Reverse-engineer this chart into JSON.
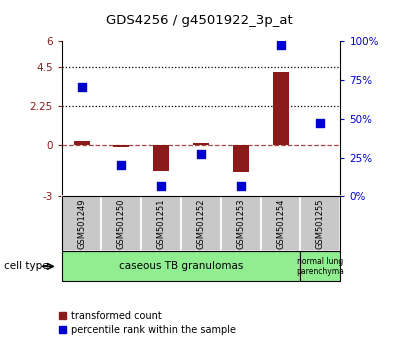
{
  "title": "GDS4256 / g4501922_3p_at",
  "samples": [
    "GSM501249",
    "GSM501250",
    "GSM501251",
    "GSM501252",
    "GSM501253",
    "GSM501254",
    "GSM501255"
  ],
  "transformed_count": [
    0.22,
    -0.12,
    -1.55,
    0.08,
    -1.6,
    4.2,
    -0.05
  ],
  "percentile_rank": [
    70,
    20,
    7,
    27,
    7,
    97,
    47
  ],
  "left_ylim": [
    -3,
    6
  ],
  "right_ylim": [
    0,
    100
  ],
  "left_yticks": [
    -3,
    0,
    2.25,
    4.5,
    6
  ],
  "left_yticklabels": [
    "-3",
    "0",
    "2.25",
    "4.5",
    "6"
  ],
  "right_yticks": [
    0,
    25,
    50,
    75,
    100
  ],
  "right_yticklabels": [
    "0%",
    "25%",
    "50%",
    "75%",
    "100%"
  ],
  "hlines": [
    4.5,
    2.25
  ],
  "red_color": "#8B1A1A",
  "blue_color": "#0000CD",
  "bar_width": 0.4,
  "g1_count": 6,
  "g2_count": 1,
  "group1_label": "caseous TB granulomas",
  "group2_label": "normal lung\nparenchyma",
  "group1_color": "#90EE90",
  "group2_color": "#90EE90",
  "cell_type_label": "cell type",
  "legend_red": "transformed count",
  "legend_blue": "percentile rank within the sample"
}
